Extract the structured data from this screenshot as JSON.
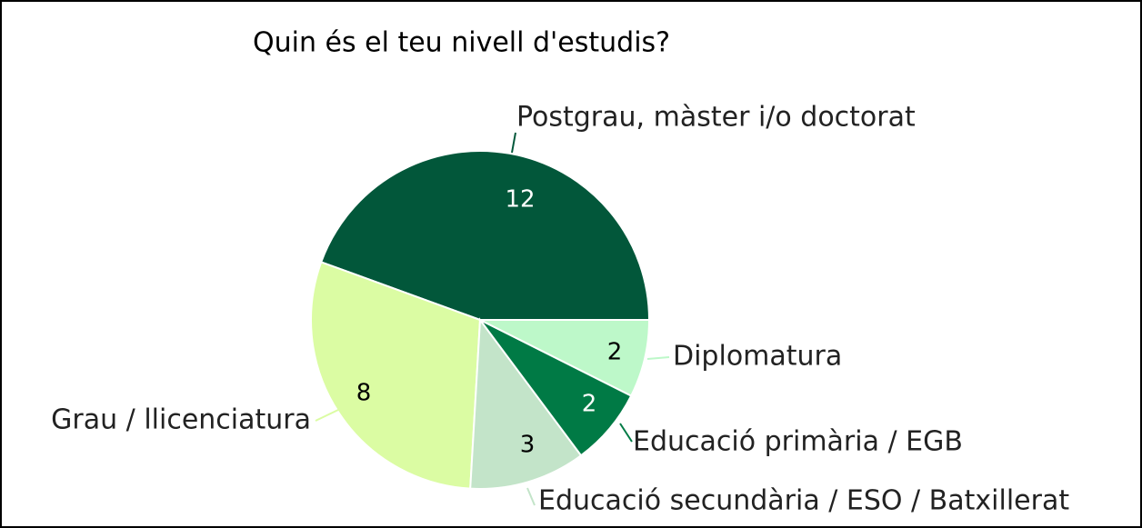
{
  "chart_data": {
    "type": "pie",
    "title": "Quin és el teu nivell d'estudis?",
    "categories": [
      "Postgrau, màster i/o doctorat",
      "Grau / llicenciatura",
      "Educació secundària / ESO / Batxillerat",
      "Educació primària / EGB",
      "Diplomatura"
    ],
    "values": [
      12,
      8,
      3,
      2,
      2
    ],
    "colors": [
      "#02573a",
      "#dbfca3",
      "#c3e4c9",
      "#007a45",
      "#bdf8c9"
    ]
  }
}
